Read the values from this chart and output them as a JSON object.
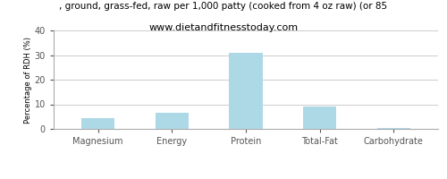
{
  "title_line1": ", ground, grass-fed, raw per 1,000 patty (cooked from 4 oz raw) (or 85",
  "title_line2": "www.dietandfitnesstoday.com",
  "categories": [
    "Magnesium",
    "Energy",
    "Protein",
    "Total-Fat",
    "Carbohydrate"
  ],
  "values": [
    4.5,
    6.5,
    31.0,
    9.0,
    0.4
  ],
  "bar_color": "#add8e6",
  "ylabel": "Percentage of RDH (%)",
  "ylim": [
    0,
    40
  ],
  "yticks": [
    0,
    10,
    20,
    30,
    40
  ],
  "background_color": "#ffffff",
  "grid_color": "#cccccc",
  "title1_fontsize": 7.5,
  "title2_fontsize": 8,
  "tick_fontsize": 7,
  "ylabel_fontsize": 6
}
